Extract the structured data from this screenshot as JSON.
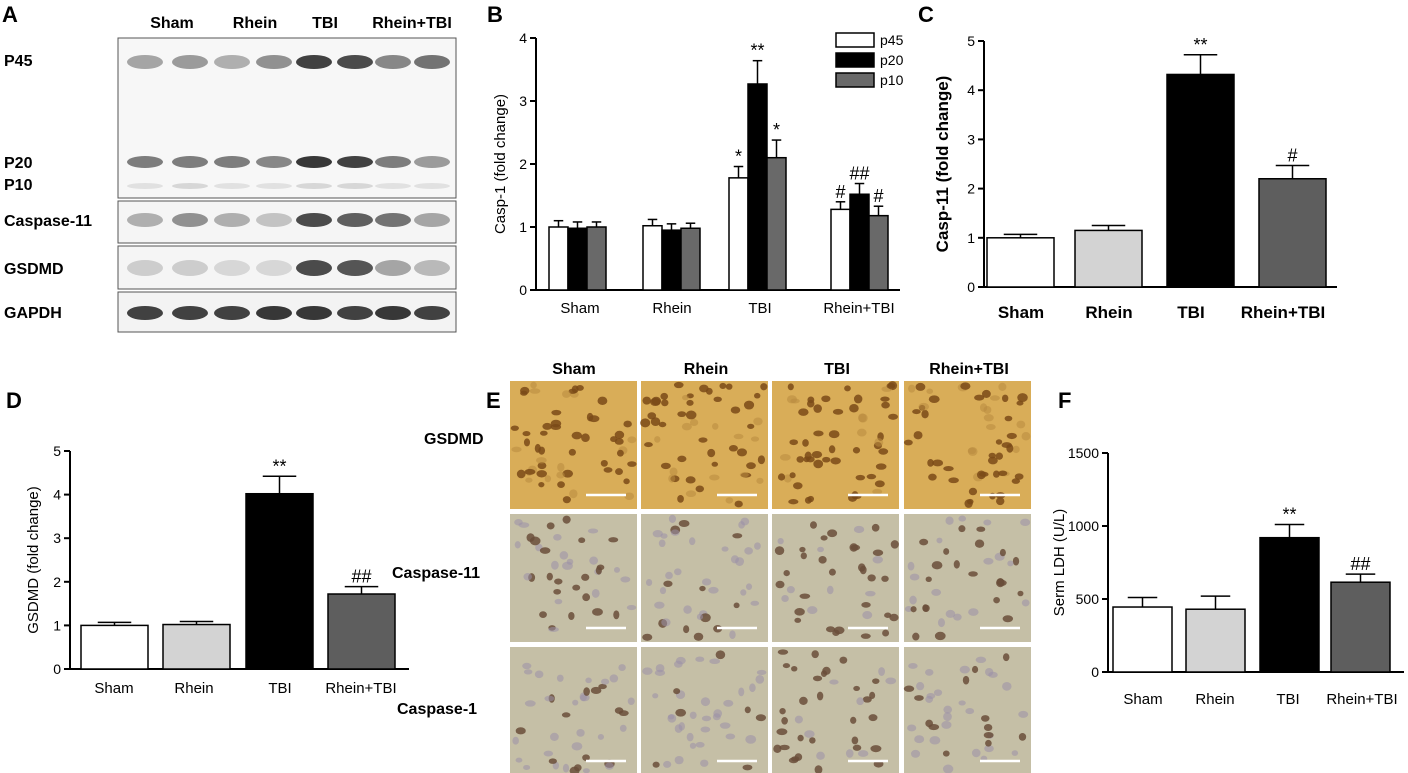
{
  "panels": {
    "A": {
      "label": "A",
      "groups": [
        "Sham",
        "Rhein",
        "TBI",
        "Rhein+TBI"
      ],
      "blots": [
        "P45",
        "P20",
        "P10",
        "Caspase-11",
        "GSDMD",
        "GAPDH"
      ],
      "caspase1_bands": [
        {
          "label": "P45",
          "intensity": [
            0.35,
            0.4,
            0.3,
            0.45,
            0.85,
            0.8,
            0.5,
            0.6
          ]
        },
        {
          "label": "P20",
          "intensity": [
            0.55,
            0.55,
            0.55,
            0.5,
            0.9,
            0.85,
            0.55,
            0.4
          ]
        },
        {
          "label": "P10",
          "intensity": [
            0.05,
            0.1,
            0.05,
            0.05,
            0.1,
            0.1,
            0.05,
            0.05
          ]
        }
      ],
      "caspase11_intensity": [
        0.3,
        0.45,
        0.3,
        0.2,
        0.8,
        0.7,
        0.6,
        0.35
      ],
      "gsdmd_intensity": [
        0.15,
        0.15,
        0.1,
        0.1,
        0.8,
        0.75,
        0.35,
        0.25
      ],
      "gapdh_intensity": [
        0.85,
        0.85,
        0.85,
        0.9,
        0.9,
        0.85,
        0.9,
        0.85
      ]
    },
    "E": {
      "label": "E",
      "columns": [
        "Sham",
        "Rhein",
        "TBI",
        "Rhein+TBI"
      ],
      "rows": [
        "GSDMD",
        "Caspase-11",
        "Caspase-1"
      ],
      "colors": {
        "gsdmd_bg": "#d9ad58",
        "casp_bg": "#c5bfa6",
        "gsdmd_cell": "#9a6a2a",
        "casp_cell": "#6a4e3a"
      },
      "cell_density": {
        "GSDMD": [
          0.6,
          0.6,
          0.8,
          0.7
        ],
        "Caspase-11": [
          0.35,
          0.3,
          0.8,
          0.5
        ],
        "Caspase-1": [
          0.35,
          0.35,
          0.8,
          0.5
        ]
      }
    }
  },
  "chart_data": [
    {
      "panel": "B",
      "type": "bar",
      "categories": [
        "Sham",
        "Rhein",
        "TBI",
        "Rhein+TBI"
      ],
      "ylabel": "Casp-1 (fold change)",
      "ylim": [
        0,
        4
      ],
      "yticks": [
        0,
        1,
        2,
        3,
        4
      ],
      "legend": "top-right",
      "series": [
        {
          "name": "p45",
          "color": "#ffffff",
          "values": [
            1.0,
            1.02,
            1.78,
            1.28
          ],
          "errors": [
            0.1,
            0.1,
            0.18,
            0.12
          ],
          "sig": [
            "",
            "",
            "*",
            "#"
          ]
        },
        {
          "name": "p20",
          "color": "#000000",
          "values": [
            0.98,
            0.95,
            3.27,
            1.52
          ],
          "errors": [
            0.1,
            0.1,
            0.37,
            0.17
          ],
          "sig": [
            "",
            "",
            "**",
            "##"
          ]
        },
        {
          "name": "p10",
          "color": "#696969",
          "values": [
            1.0,
            0.98,
            2.1,
            1.18
          ],
          "errors": [
            0.08,
            0.08,
            0.28,
            0.15
          ],
          "sig": [
            "",
            "",
            "*",
            "#"
          ]
        }
      ]
    },
    {
      "panel": "C",
      "type": "bar",
      "categories": [
        "Sham",
        "Rhein",
        "TBI",
        "Rhein+TBI"
      ],
      "ylabel": "Casp-11 (fold change)",
      "ylim": [
        0,
        5
      ],
      "yticks": [
        0,
        1,
        2,
        3,
        4,
        5
      ],
      "values": [
        1.0,
        1.15,
        4.32,
        2.2
      ],
      "errors": [
        0.07,
        0.1,
        0.4,
        0.27
      ],
      "colors": [
        "#ffffff",
        "#d3d3d3",
        "#000000",
        "#5e5e5e"
      ],
      "sig": [
        "",
        "",
        "**",
        "#"
      ]
    },
    {
      "panel": "D",
      "type": "bar",
      "categories": [
        "Sham",
        "Rhein",
        "TBI",
        "Rhein+TBI"
      ],
      "ylabel": "GSDMD (fold change)",
      "ylim": [
        0,
        5
      ],
      "yticks": [
        0,
        1,
        2,
        3,
        4,
        5
      ],
      "values": [
        1.0,
        1.02,
        4.02,
        1.72
      ],
      "errors": [
        0.07,
        0.07,
        0.4,
        0.17
      ],
      "colors": [
        "#ffffff",
        "#d3d3d3",
        "#000000",
        "#5e5e5e"
      ],
      "sig": [
        "",
        "",
        "**",
        "##"
      ]
    },
    {
      "panel": "F",
      "type": "bar",
      "categories": [
        "Sham",
        "Rhein",
        "TBI",
        "Rhein+TBI"
      ],
      "ylabel": "Serm LDH (U/L)",
      "ylim": [
        0,
        1500
      ],
      "yticks": [
        0,
        500,
        1000,
        1500
      ],
      "values": [
        445,
        430,
        920,
        615
      ],
      "errors": [
        65,
        90,
        90,
        55
      ],
      "colors": [
        "#ffffff",
        "#d3d3d3",
        "#000000",
        "#5e5e5e"
      ],
      "sig": [
        "",
        "",
        "**",
        "##"
      ]
    }
  ]
}
